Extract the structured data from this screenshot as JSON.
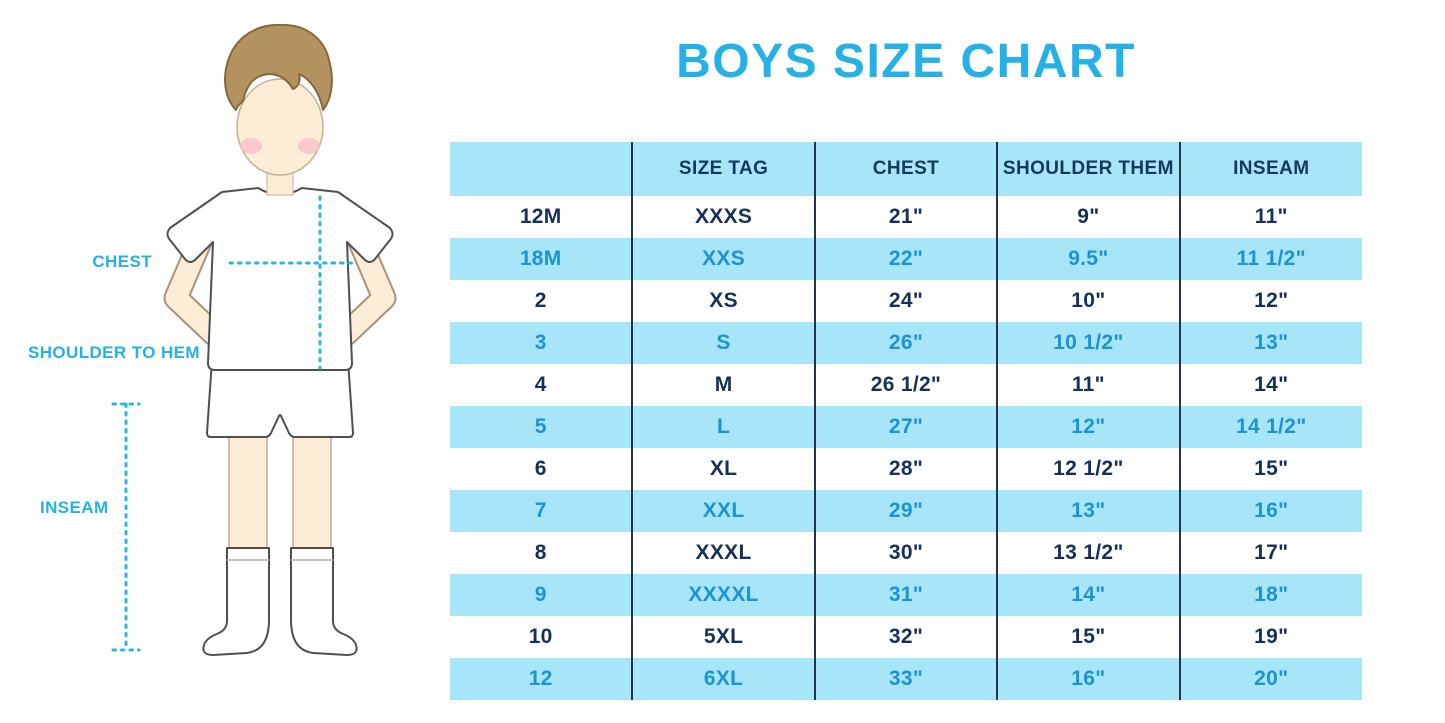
{
  "title": "BOYS SIZE CHART",
  "diagram": {
    "chest_label": "CHEST",
    "shoulder_label": "SHOULDER TO HEM",
    "inseam_label": "INSEAM"
  },
  "colors": {
    "accent_blue": "#25b1e7",
    "measure_line_blue": "#2ab4ea",
    "stripe_bg": "#a7e5f8",
    "dark_row_text": "#16305a",
    "stripe_row_text": "#1d93d1",
    "grid_line": "#24344a"
  },
  "chart_data": {
    "type": "table",
    "title": "BOYS SIZE CHART",
    "columns": [
      "",
      "SIZE TAG",
      "CHEST",
      "SHOULDER THEM",
      "INSEAM"
    ],
    "rows": [
      [
        "12M",
        "XXXS",
        "21\"",
        "9\"",
        "11\""
      ],
      [
        "18M",
        "XXS",
        "22\"",
        "9.5\"",
        "11 1/2\""
      ],
      [
        "2",
        "XS",
        "24\"",
        "10\"",
        "12\""
      ],
      [
        "3",
        "S",
        "26\"",
        "10 1/2\"",
        "13\""
      ],
      [
        "4",
        "M",
        "26 1/2\"",
        "11\"",
        "14\""
      ],
      [
        "5",
        "L",
        "27\"",
        "12\"",
        "14 1/2\""
      ],
      [
        "6",
        "XL",
        "28\"",
        "12 1/2\"",
        "15\""
      ],
      [
        "7",
        "XXL",
        "29\"",
        "13\"",
        "16\""
      ],
      [
        "8",
        "XXXL",
        "30\"",
        "13 1/2\"",
        "17\""
      ],
      [
        "9",
        "XXXXL",
        "31\"",
        "14\"",
        "18\""
      ],
      [
        "10",
        "5XL",
        "32\"",
        "15\"",
        "19\""
      ],
      [
        "12",
        "6XL",
        "33\"",
        "16\"",
        "20\""
      ]
    ]
  }
}
